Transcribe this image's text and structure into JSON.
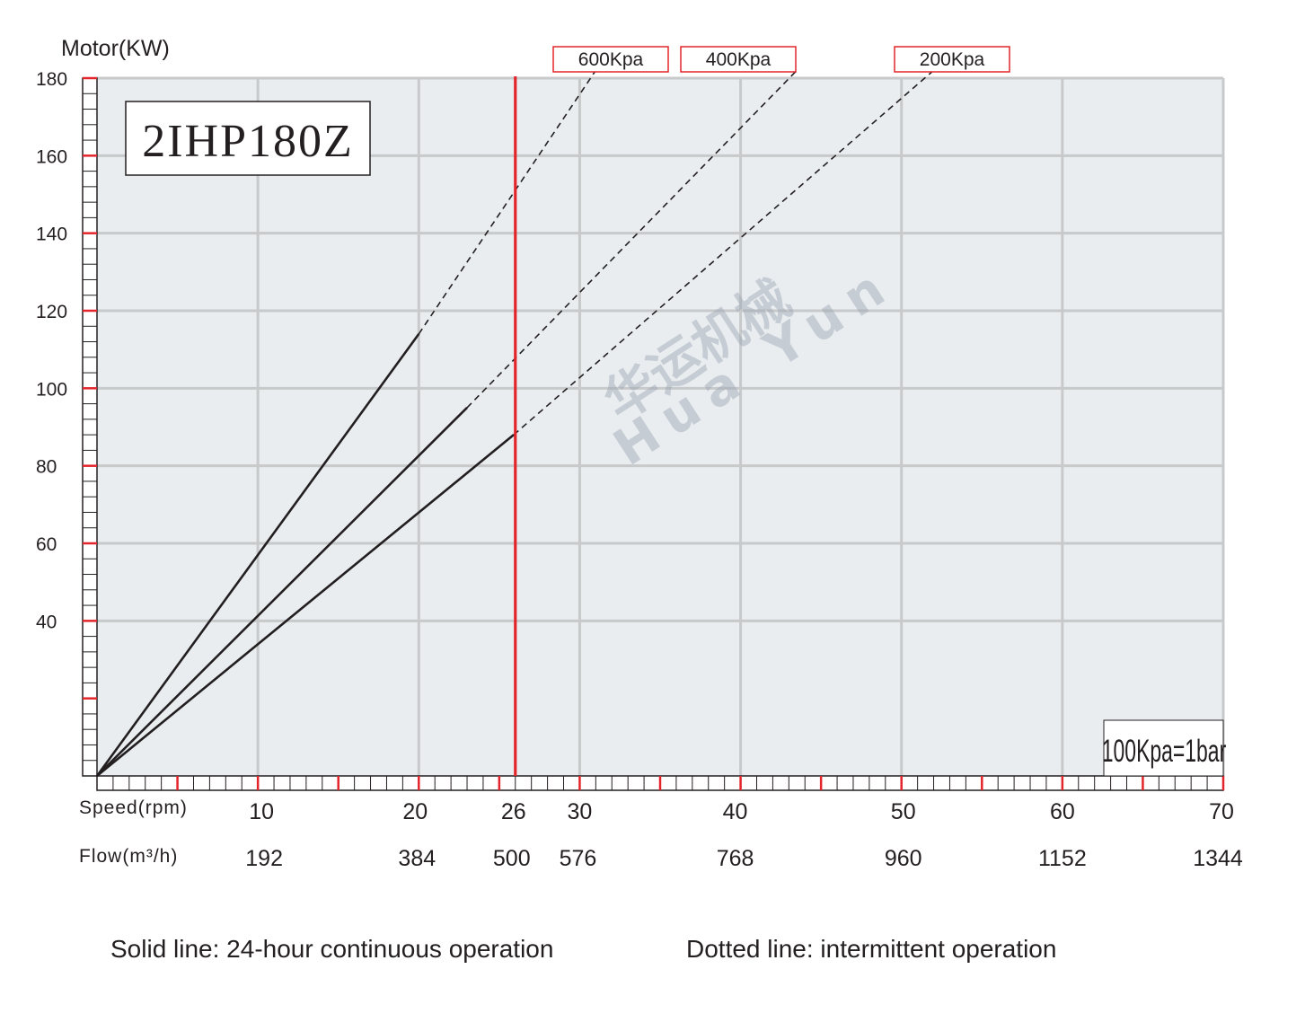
{
  "chart_data": {
    "type": "line",
    "title": "2IHP180Z",
    "ylabel": "Motor(KW)",
    "xlabel_speed": "Speed(rpm)",
    "xlabel_flow": "Flow(m³/h)",
    "ylim": [
      0,
      180
    ],
    "xlim": [
      0,
      70
    ],
    "y_ticks": [
      40,
      60,
      80,
      100,
      120,
      140,
      160,
      180
    ],
    "x_ticks": [
      10,
      20,
      26,
      30,
      40,
      50,
      60,
      70
    ],
    "speed_tick_labels": [
      "10",
      "20",
      "26",
      "30",
      "40",
      "50",
      "60",
      "70"
    ],
    "flow_tick_labels": [
      "192",
      "384",
      "500",
      "576",
      "768",
      "960",
      "1152",
      "1344"
    ],
    "max_speed_marker": 26,
    "grid": true,
    "conversion_note": "100Kpa=1bar",
    "background": "#e9edf0",
    "grid_color": "#c8c9ca",
    "marker_color": "#e3252b",
    "series": [
      {
        "name": "600Kpa",
        "solid": [
          [
            0,
            0
          ],
          [
            20,
            114
          ]
        ],
        "dashed": [
          [
            20,
            114
          ],
          [
            31,
            182
          ]
        ]
      },
      {
        "name": "400Kpa",
        "solid": [
          [
            0,
            0
          ],
          [
            23,
            95
          ]
        ],
        "dashed": [
          [
            23,
            95
          ],
          [
            43.5,
            182
          ]
        ]
      },
      {
        "name": "200Kpa",
        "solid": [
          [
            0,
            0
          ],
          [
            25.9,
            88
          ]
        ],
        "dashed": [
          [
            25.9,
            88
          ],
          [
            52,
            182
          ]
        ]
      }
    ]
  },
  "legend": {
    "solid": "Solid line: 24-hour continuous operation",
    "dotted": "Dotted line: intermittent operation"
  },
  "watermark": {
    "cn": "华运机械",
    "en": "Hua Yun"
  }
}
